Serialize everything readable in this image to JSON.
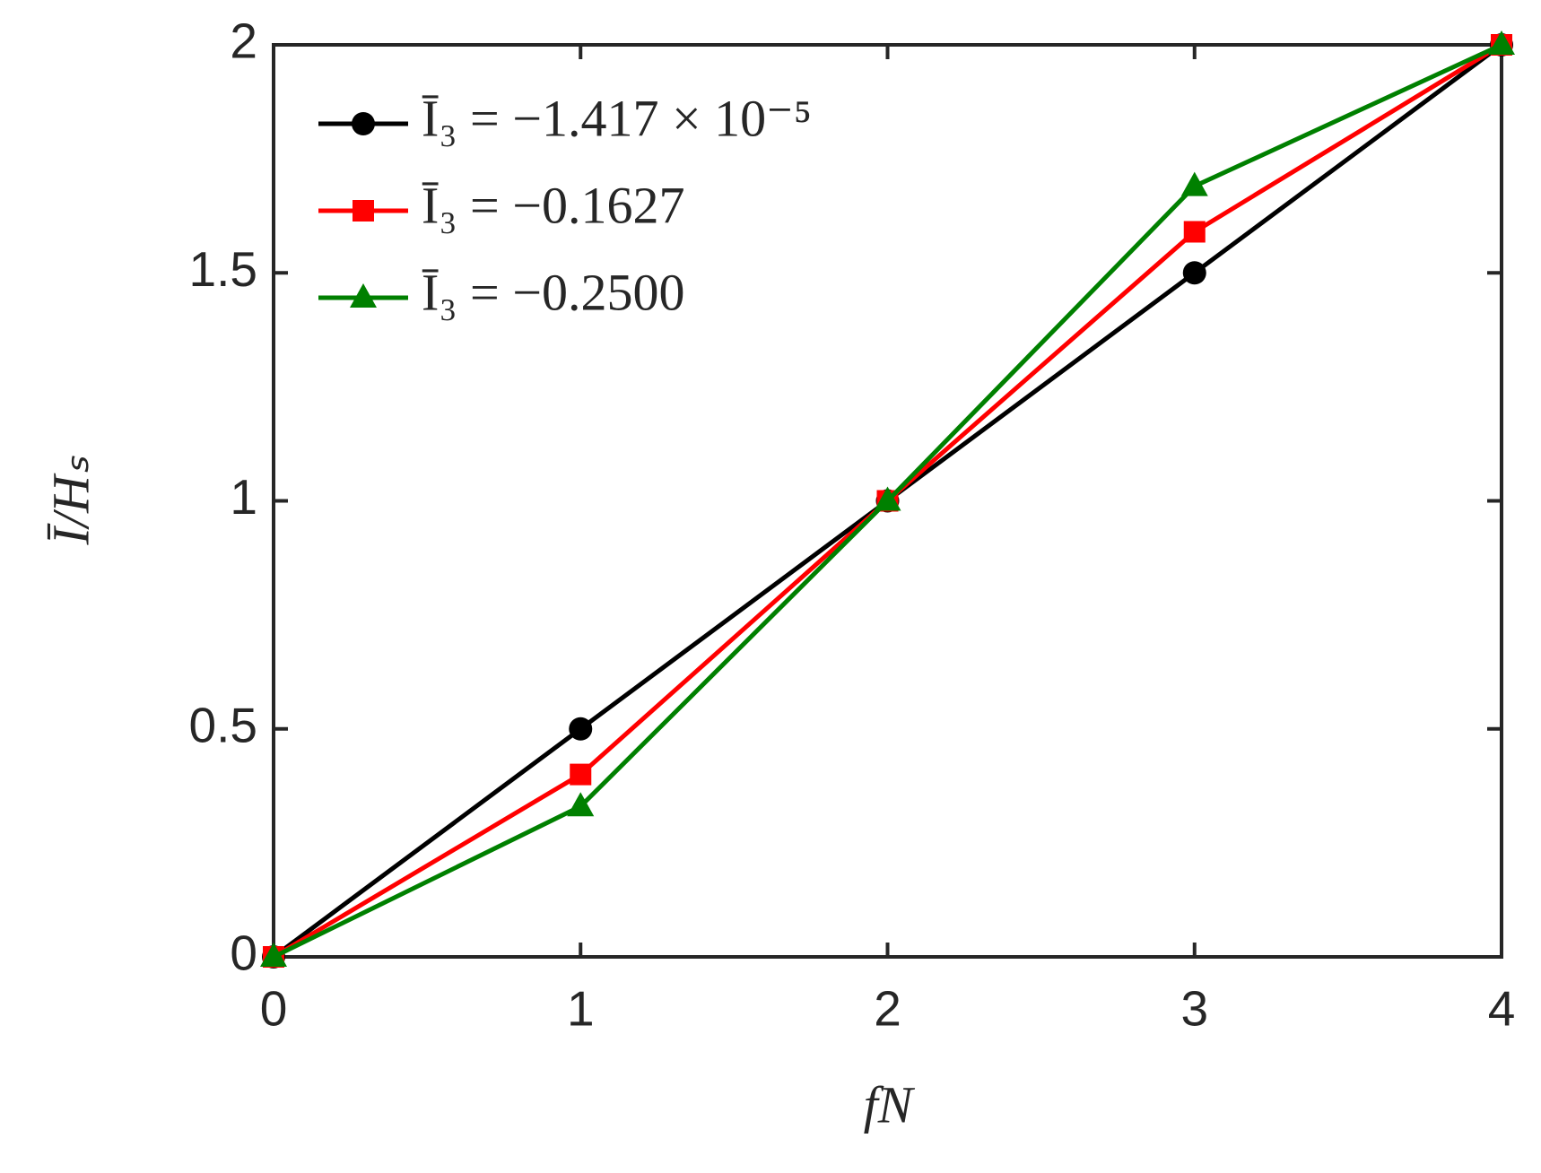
{
  "chart_data": {
    "type": "line",
    "x_label": "fN",
    "y_label": "Ī/Hₛ",
    "x": [
      0,
      1,
      2,
      3,
      4
    ],
    "series": [
      {
        "name": "Ī₃ = −1.417 × 10⁻⁵",
        "color": "#000000",
        "marker": "circle",
        "values": [
          0,
          0.5,
          1,
          1.5,
          2
        ]
      },
      {
        "name": "Ī₃ = −0.1627",
        "color": "#ff0000",
        "marker": "square",
        "values": [
          0,
          0.4,
          1,
          1.59,
          2
        ]
      },
      {
        "name": "Ī₃ = −0.2500",
        "color": "#008000",
        "marker": "triangle",
        "values": [
          0,
          0.33,
          1,
          1.69,
          2
        ]
      }
    ],
    "xlim": [
      0,
      4
    ],
    "xticks": [
      0,
      1,
      2,
      3,
      4
    ],
    "ylim": [
      0,
      2
    ],
    "yticks": [
      0,
      0.5,
      1,
      1.5,
      2
    ],
    "grid": false,
    "legend": "upper-left"
  }
}
